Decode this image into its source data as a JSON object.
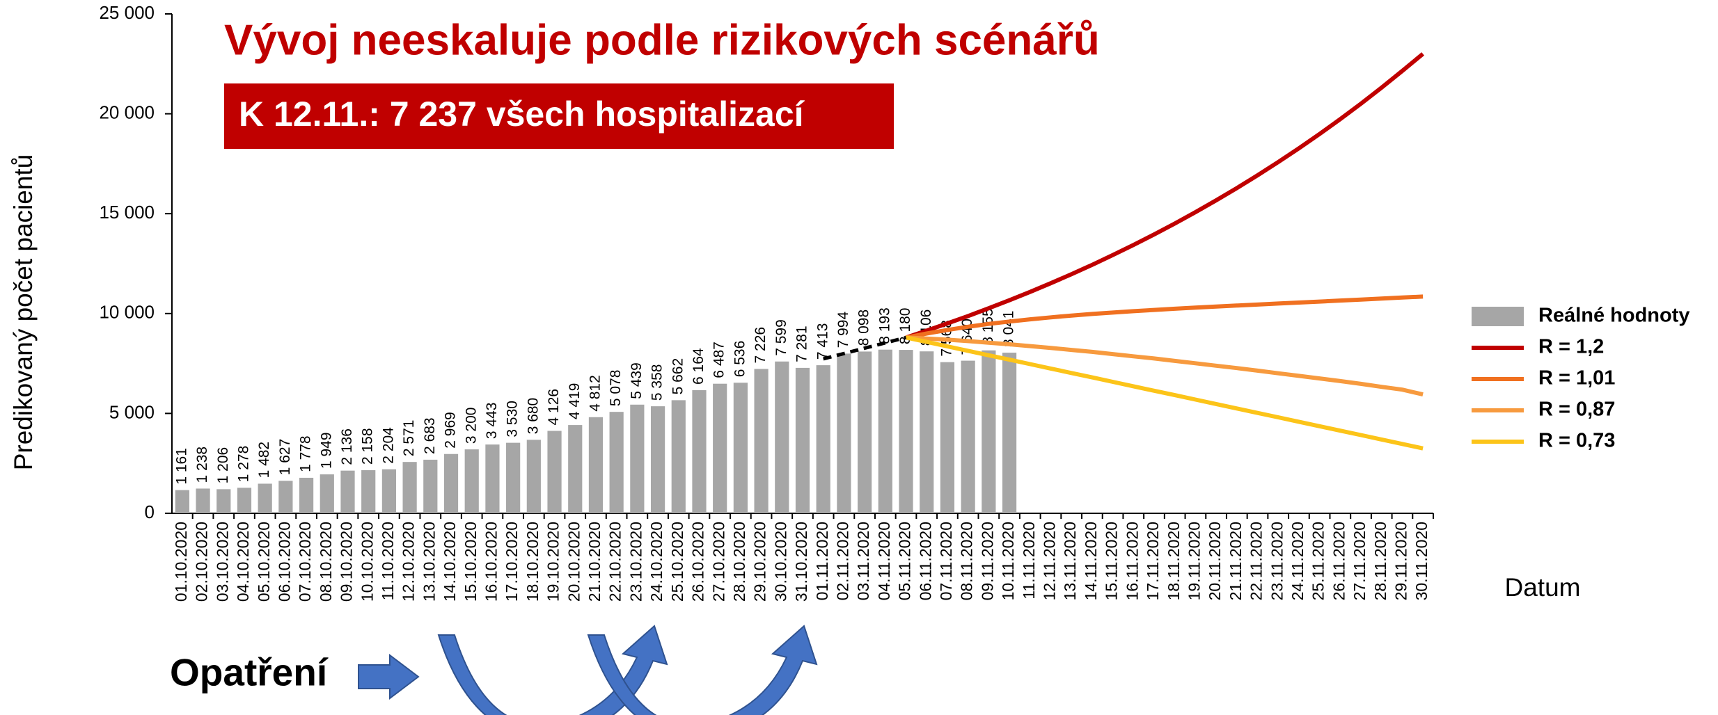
{
  "chart_data": {
    "type": "bar",
    "title": "Vývoj neeskaluje podle rizikových scénářů",
    "annotations": [
      "K 12.11.: 7 237 všech hospitalizací",
      "Opatření"
    ],
    "y_label": "Predikovaný počet pacientů",
    "x_label": "Datum",
    "categories": [
      "01.10.2020",
      "02.10.2020",
      "03.10.2020",
      "04.10.2020",
      "05.10.2020",
      "06.10.2020",
      "07.10.2020",
      "08.10.2020",
      "09.10.2020",
      "10.10.2020",
      "11.10.2020",
      "12.10.2020",
      "13.10.2020",
      "14.10.2020",
      "15.10.2020",
      "16.10.2020",
      "17.10.2020",
      "18.10.2020",
      "19.10.2020",
      "20.10.2020",
      "21.10.2020",
      "22.10.2020",
      "23.10.2020",
      "24.10.2020",
      "25.10.2020",
      "26.10.2020",
      "27.10.2020",
      "28.10.2020",
      "29.10.2020",
      "30.10.2020",
      "31.10.2020",
      "01.11.2020",
      "02.11.2020",
      "03.11.2020",
      "04.11.2020",
      "05.11.2020",
      "06.11.2020",
      "07.11.2020",
      "08.11.2020",
      "09.11.2020",
      "10.11.2020",
      "11.11.2020",
      "12.11.2020",
      "13.11.2020",
      "14.11.2020",
      "15.11.2020",
      "16.11.2020",
      "17.11.2020",
      "18.11.2020",
      "19.11.2020",
      "20.11.2020",
      "21.11.2020",
      "22.11.2020",
      "23.11.2020",
      "24.11.2020",
      "25.11.2020",
      "26.11.2020",
      "27.11.2020",
      "28.11.2020",
      "29.11.2020",
      "30.11.2020"
    ],
    "series": [
      {
        "name": "Reálné hodnoty",
        "type": "bar",
        "color": "#a6a6a6",
        "values": [
          1161,
          1238,
          1206,
          1278,
          1482,
          1627,
          1778,
          1949,
          2136,
          2158,
          2204,
          2571,
          2683,
          2969,
          3200,
          3443,
          3530,
          3680,
          4126,
          4419,
          4812,
          5078,
          5439,
          5358,
          5662,
          6164,
          6487,
          6536,
          7226,
          7599,
          7281,
          7413,
          7994,
          8098,
          8193,
          8180,
          8106,
          7568,
          7640,
          8155,
          8041,
          null,
          null,
          null,
          null,
          null,
          null,
          null,
          null,
          null,
          null,
          null,
          null,
          null,
          null,
          null,
          null,
          null,
          null,
          null,
          null
        ],
        "value_labels": [
          "1 161",
          "1 238",
          "1 206",
          "1 278",
          "1 482",
          "1 627",
          "1 778",
          "1 949",
          "2 136",
          "2 158",
          "2 204",
          "2 571",
          "2 683",
          "2 969",
          "3 200",
          "3 443",
          "3 530",
          "3 680",
          "4 126",
          "4 419",
          "4 812",
          "5 078",
          "5 439",
          "5 358",
          "5 662",
          "6 164",
          "6 487",
          "6 536",
          "7 226",
          "7 599",
          "7 281",
          "7 413",
          "7 994",
          "8 098",
          "8 193",
          "8 180",
          "8 106",
          "7 568",
          "7 640",
          "8 155",
          "8 041",
          null,
          null,
          null,
          null,
          null,
          null,
          null,
          null,
          null,
          null,
          null,
          null,
          null,
          null,
          null,
          null,
          null,
          null,
          null,
          null
        ]
      },
      {
        "name": "R = 1,2",
        "type": "line",
        "color": "#c00000",
        "values": [
          null,
          null,
          null,
          null,
          null,
          null,
          null,
          null,
          null,
          null,
          null,
          null,
          null,
          null,
          null,
          null,
          null,
          null,
          null,
          null,
          null,
          null,
          null,
          null,
          null,
          null,
          null,
          null,
          null,
          null,
          null,
          null,
          null,
          null,
          null,
          8800,
          9145,
          9504,
          9876,
          10263,
          10666,
          11084,
          11518,
          11970,
          12439,
          12927,
          13433,
          13960,
          14507,
          15076,
          15667,
          16281,
          16919,
          17582,
          18271,
          18987,
          19732,
          20505,
          21309,
          22144,
          23000
        ]
      },
      {
        "name": "R = 1,01",
        "type": "line",
        "color": "#f07020",
        "values": [
          null,
          null,
          null,
          null,
          null,
          null,
          null,
          null,
          null,
          null,
          null,
          null,
          null,
          null,
          null,
          null,
          null,
          null,
          null,
          null,
          null,
          null,
          null,
          null,
          null,
          null,
          null,
          null,
          null,
          null,
          null,
          null,
          null,
          null,
          null,
          8800,
          9000,
          9180,
          9340,
          9480,
          9600,
          9710,
          9810,
          9900,
          9980,
          10050,
          10120,
          10180,
          10240,
          10300,
          10350,
          10400,
          10450,
          10500,
          10550,
          10600,
          10650,
          10700,
          10750,
          10800,
          10850
        ]
      },
      {
        "name": "R = 0,87",
        "type": "line",
        "color": "#f79a3e",
        "values": [
          null,
          null,
          null,
          null,
          null,
          null,
          null,
          null,
          null,
          null,
          null,
          null,
          null,
          null,
          null,
          null,
          null,
          null,
          null,
          null,
          null,
          null,
          null,
          null,
          null,
          null,
          null,
          null,
          null,
          null,
          null,
          null,
          null,
          null,
          null,
          8800,
          8750,
          8690,
          8620,
          8540,
          8460,
          8370,
          8280,
          8180,
          8080,
          7970,
          7860,
          7750,
          7630,
          7510,
          7390,
          7270,
          7140,
          7010,
          6880,
          6750,
          6620,
          6480,
          6330,
          6190,
          5950
        ]
      },
      {
        "name": "R = 0,73",
        "type": "line",
        "color": "#fcc419",
        "values": [
          null,
          null,
          null,
          null,
          null,
          null,
          null,
          null,
          null,
          null,
          null,
          null,
          null,
          null,
          null,
          null,
          null,
          null,
          null,
          null,
          null,
          null,
          null,
          null,
          null,
          null,
          null,
          null,
          null,
          null,
          null,
          null,
          null,
          null,
          null,
          8800,
          8578,
          8356,
          8134,
          7912,
          7690,
          7468,
          7246,
          7024,
          6802,
          6580,
          6358,
          6136,
          5914,
          5692,
          5470,
          5248,
          5026,
          4804,
          4582,
          4360,
          4138,
          3916,
          3694,
          3472,
          3250
        ]
      },
      {
        "type": "line",
        "color": "#000000",
        "dash": true,
        "values": [
          null,
          null,
          null,
          null,
          null,
          null,
          null,
          null,
          null,
          null,
          null,
          null,
          null,
          null,
          null,
          null,
          null,
          null,
          null,
          null,
          null,
          null,
          null,
          null,
          null,
          null,
          null,
          null,
          null,
          null,
          null,
          7730,
          7998,
          8265,
          8533,
          8800,
          null,
          null,
          null,
          null,
          null,
          null,
          null,
          null,
          null,
          null,
          null,
          null,
          null,
          null,
          null,
          null,
          null,
          null,
          null,
          null,
          null,
          null,
          null,
          null,
          null
        ]
      }
    ],
    "ylim": [
      0,
      25000
    ],
    "yticks": [
      0,
      {
        "value": 5000,
        "label": "5 000"
      },
      {
        "value": 10000,
        "label": "10 000"
      },
      {
        "value": 15000,
        "label": "15 000"
      },
      {
        "value": 20000,
        "label": "20 000"
      },
      {
        "value": 25000,
        "label": "25 000"
      }
    ],
    "legend": "right"
  }
}
